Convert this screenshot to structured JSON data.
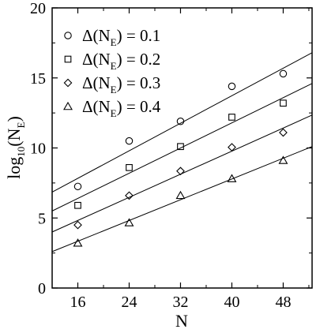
{
  "chart_data": {
    "type": "scatter",
    "title": "",
    "xlabel": "N",
    "ylabel": {
      "main": "log",
      "sub1": "10",
      "mid": "(N",
      "sub2": "E",
      "end": ")"
    },
    "xlim": [
      12.0,
      52.5
    ],
    "ylim": [
      0,
      20
    ],
    "xticks": [
      16,
      24,
      32,
      40,
      48
    ],
    "yticks": [
      0,
      5,
      10,
      15,
      20
    ],
    "grid": false,
    "legend_position": "top-left",
    "series": [
      {
        "name": "Δ(N_E) = 0.1",
        "legend": {
          "pre": "Δ(N",
          "sub": "E",
          "post": ") = 0.1"
        },
        "marker": "circle",
        "x": [
          16,
          24,
          32,
          40,
          48
        ],
        "y": [
          7.25,
          10.5,
          11.9,
          14.4,
          15.3
        ],
        "fit": {
          "x": [
            12.0,
            52.5
          ],
          "y": [
            6.85,
            16.8
          ]
        }
      },
      {
        "name": "Δ(N_E) = 0.2",
        "legend": {
          "pre": "Δ(N",
          "sub": "E",
          "post": ") = 0.2"
        },
        "marker": "square",
        "x": [
          16,
          24,
          32,
          40,
          48
        ],
        "y": [
          5.9,
          8.6,
          10.1,
          12.2,
          13.2
        ],
        "fit": {
          "x": [
            12.0,
            52.5
          ],
          "y": [
            5.5,
            14.6
          ]
        }
      },
      {
        "name": "Δ(N_E) = 0.3",
        "legend": {
          "pre": "Δ(N",
          "sub": "E",
          "post": ") = 0.3"
        },
        "marker": "diamond",
        "x": [
          16,
          24,
          32,
          40,
          48
        ],
        "y": [
          4.5,
          6.6,
          8.35,
          10.05,
          11.1
        ],
        "fit": {
          "x": [
            12.0,
            52.5
          ],
          "y": [
            4.0,
            12.35
          ]
        }
      },
      {
        "name": "Δ(N_E) = 0.4",
        "legend": {
          "pre": "Δ(N",
          "sub": "E",
          "post": ") = 0.4"
        },
        "marker": "triangle",
        "x": [
          16,
          24,
          32,
          40,
          48
        ],
        "y": [
          3.2,
          4.65,
          6.6,
          7.8,
          9.1
        ],
        "fit": {
          "x": [
            12.0,
            52.5
          ],
          "y": [
            2.6,
            10.1
          ]
        }
      }
    ]
  }
}
